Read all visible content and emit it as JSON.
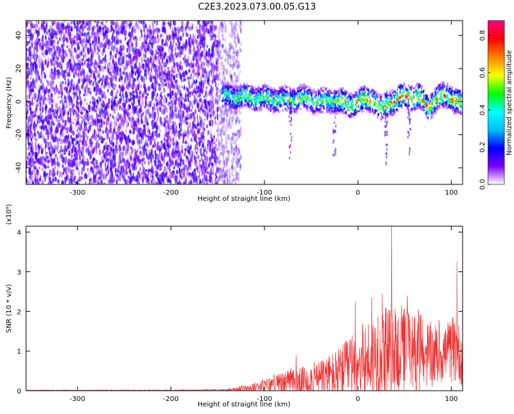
{
  "title": "C2E3.2023.073.00.05.G13",
  "chart_data": [
    {
      "type": "heatmap",
      "xlabel": "Height of straight line (km)",
      "ylabel": "Frequency (Hz)",
      "xlim": [
        -355,
        112
      ],
      "ylim": [
        -50,
        49
      ],
      "x_ticks": [
        -300,
        -200,
        -100,
        0,
        100
      ],
      "y_ticks": [
        -40,
        -20,
        0,
        20,
        40
      ],
      "colorbar": {
        "label": "Normalized spectral amplitude",
        "range": [
          0.0,
          0.88
        ],
        "ticks": [
          0.0,
          0.2,
          0.4,
          0.6,
          0.8
        ],
        "colors": [
          "#ffffff",
          "#7b00ff",
          "#0000ff",
          "#00bfff",
          "#00ffff",
          "#00ff00",
          "#ffff00",
          "#ff8000",
          "#ff0000",
          "#ff0080"
        ]
      },
      "noise_region": {
        "x_range": [
          -355,
          -135
        ],
        "typical_amplitude": 0.1
      },
      "signal_band": {
        "x_range": [
          -145,
          112
        ],
        "centerline": [
          {
            "x": -145,
            "y": 3
          },
          {
            "x": -120,
            "y": 3
          },
          {
            "x": -100,
            "y": 2
          },
          {
            "x": -80,
            "y": 1
          },
          {
            "x": -60,
            "y": 2
          },
          {
            "x": -40,
            "y": 0
          },
          {
            "x": -25,
            "y": 1
          },
          {
            "x": -10,
            "y": -2
          },
          {
            "x": 0,
            "y": 0
          },
          {
            "x": 15,
            "y": 2
          },
          {
            "x": 25,
            "y": -5
          },
          {
            "x": 35,
            "y": 0
          },
          {
            "x": 50,
            "y": 3
          },
          {
            "x": 65,
            "y": 3
          },
          {
            "x": 75,
            "y": -3
          },
          {
            "x": 85,
            "y": 2
          },
          {
            "x": 95,
            "y": 4
          },
          {
            "x": 112,
            "y": -2
          }
        ],
        "peak_amplitude": 0.88
      },
      "grid": false
    },
    {
      "type": "line",
      "xlabel": "Height of straight line (km)",
      "ylabel": "SNR (10 * v/v)",
      "y_multiplier": "(x10⁴)",
      "xlim": [
        -355,
        112
      ],
      "ylim": [
        0,
        4.15
      ],
      "x_ticks": [
        -300,
        -200,
        -100,
        0,
        100
      ],
      "y_ticks": [
        0,
        1,
        2,
        3,
        4
      ],
      "series": [
        {
          "color": "#ee3333",
          "envelope": [
            {
              "x": -355,
              "mean": 0.01,
              "max": 0.02
            },
            {
              "x": -200,
              "mean": 0.01,
              "max": 0.02
            },
            {
              "x": -140,
              "mean": 0.02,
              "max": 0.04
            },
            {
              "x": -120,
              "mean": 0.06,
              "max": 0.15
            },
            {
              "x": -100,
              "mean": 0.12,
              "max": 0.3
            },
            {
              "x": -80,
              "mean": 0.2,
              "max": 0.5
            },
            {
              "x": -60,
              "mean": 0.25,
              "max": 0.6
            },
            {
              "x": -40,
              "mean": 0.3,
              "max": 0.8
            },
            {
              "x": -20,
              "mean": 0.4,
              "max": 1.1
            },
            {
              "x": 0,
              "mean": 0.7,
              "max": 1.6
            },
            {
              "x": 20,
              "mean": 0.85,
              "max": 2.0
            },
            {
              "x": 40,
              "mean": 1.0,
              "max": 2.2
            },
            {
              "x": 60,
              "mean": 1.0,
              "max": 2.1
            },
            {
              "x": 80,
              "mean": 0.9,
              "max": 1.7
            },
            {
              "x": 100,
              "mean": 1.0,
              "max": 1.8
            },
            {
              "x": 112,
              "mean": 0.9,
              "max": 1.7
            }
          ],
          "spikes": [
            {
              "x": -66,
              "y": 0.9
            },
            {
              "x": -3,
              "y": 2.25
            },
            {
              "x": 15,
              "y": 2.35
            },
            {
              "x": 26,
              "y": 2.45
            },
            {
              "x": 36,
              "y": 4.15
            },
            {
              "x": 53,
              "y": 2.4
            },
            {
              "x": 106,
              "y": 3.25
            }
          ]
        }
      ],
      "grid": false
    }
  ]
}
